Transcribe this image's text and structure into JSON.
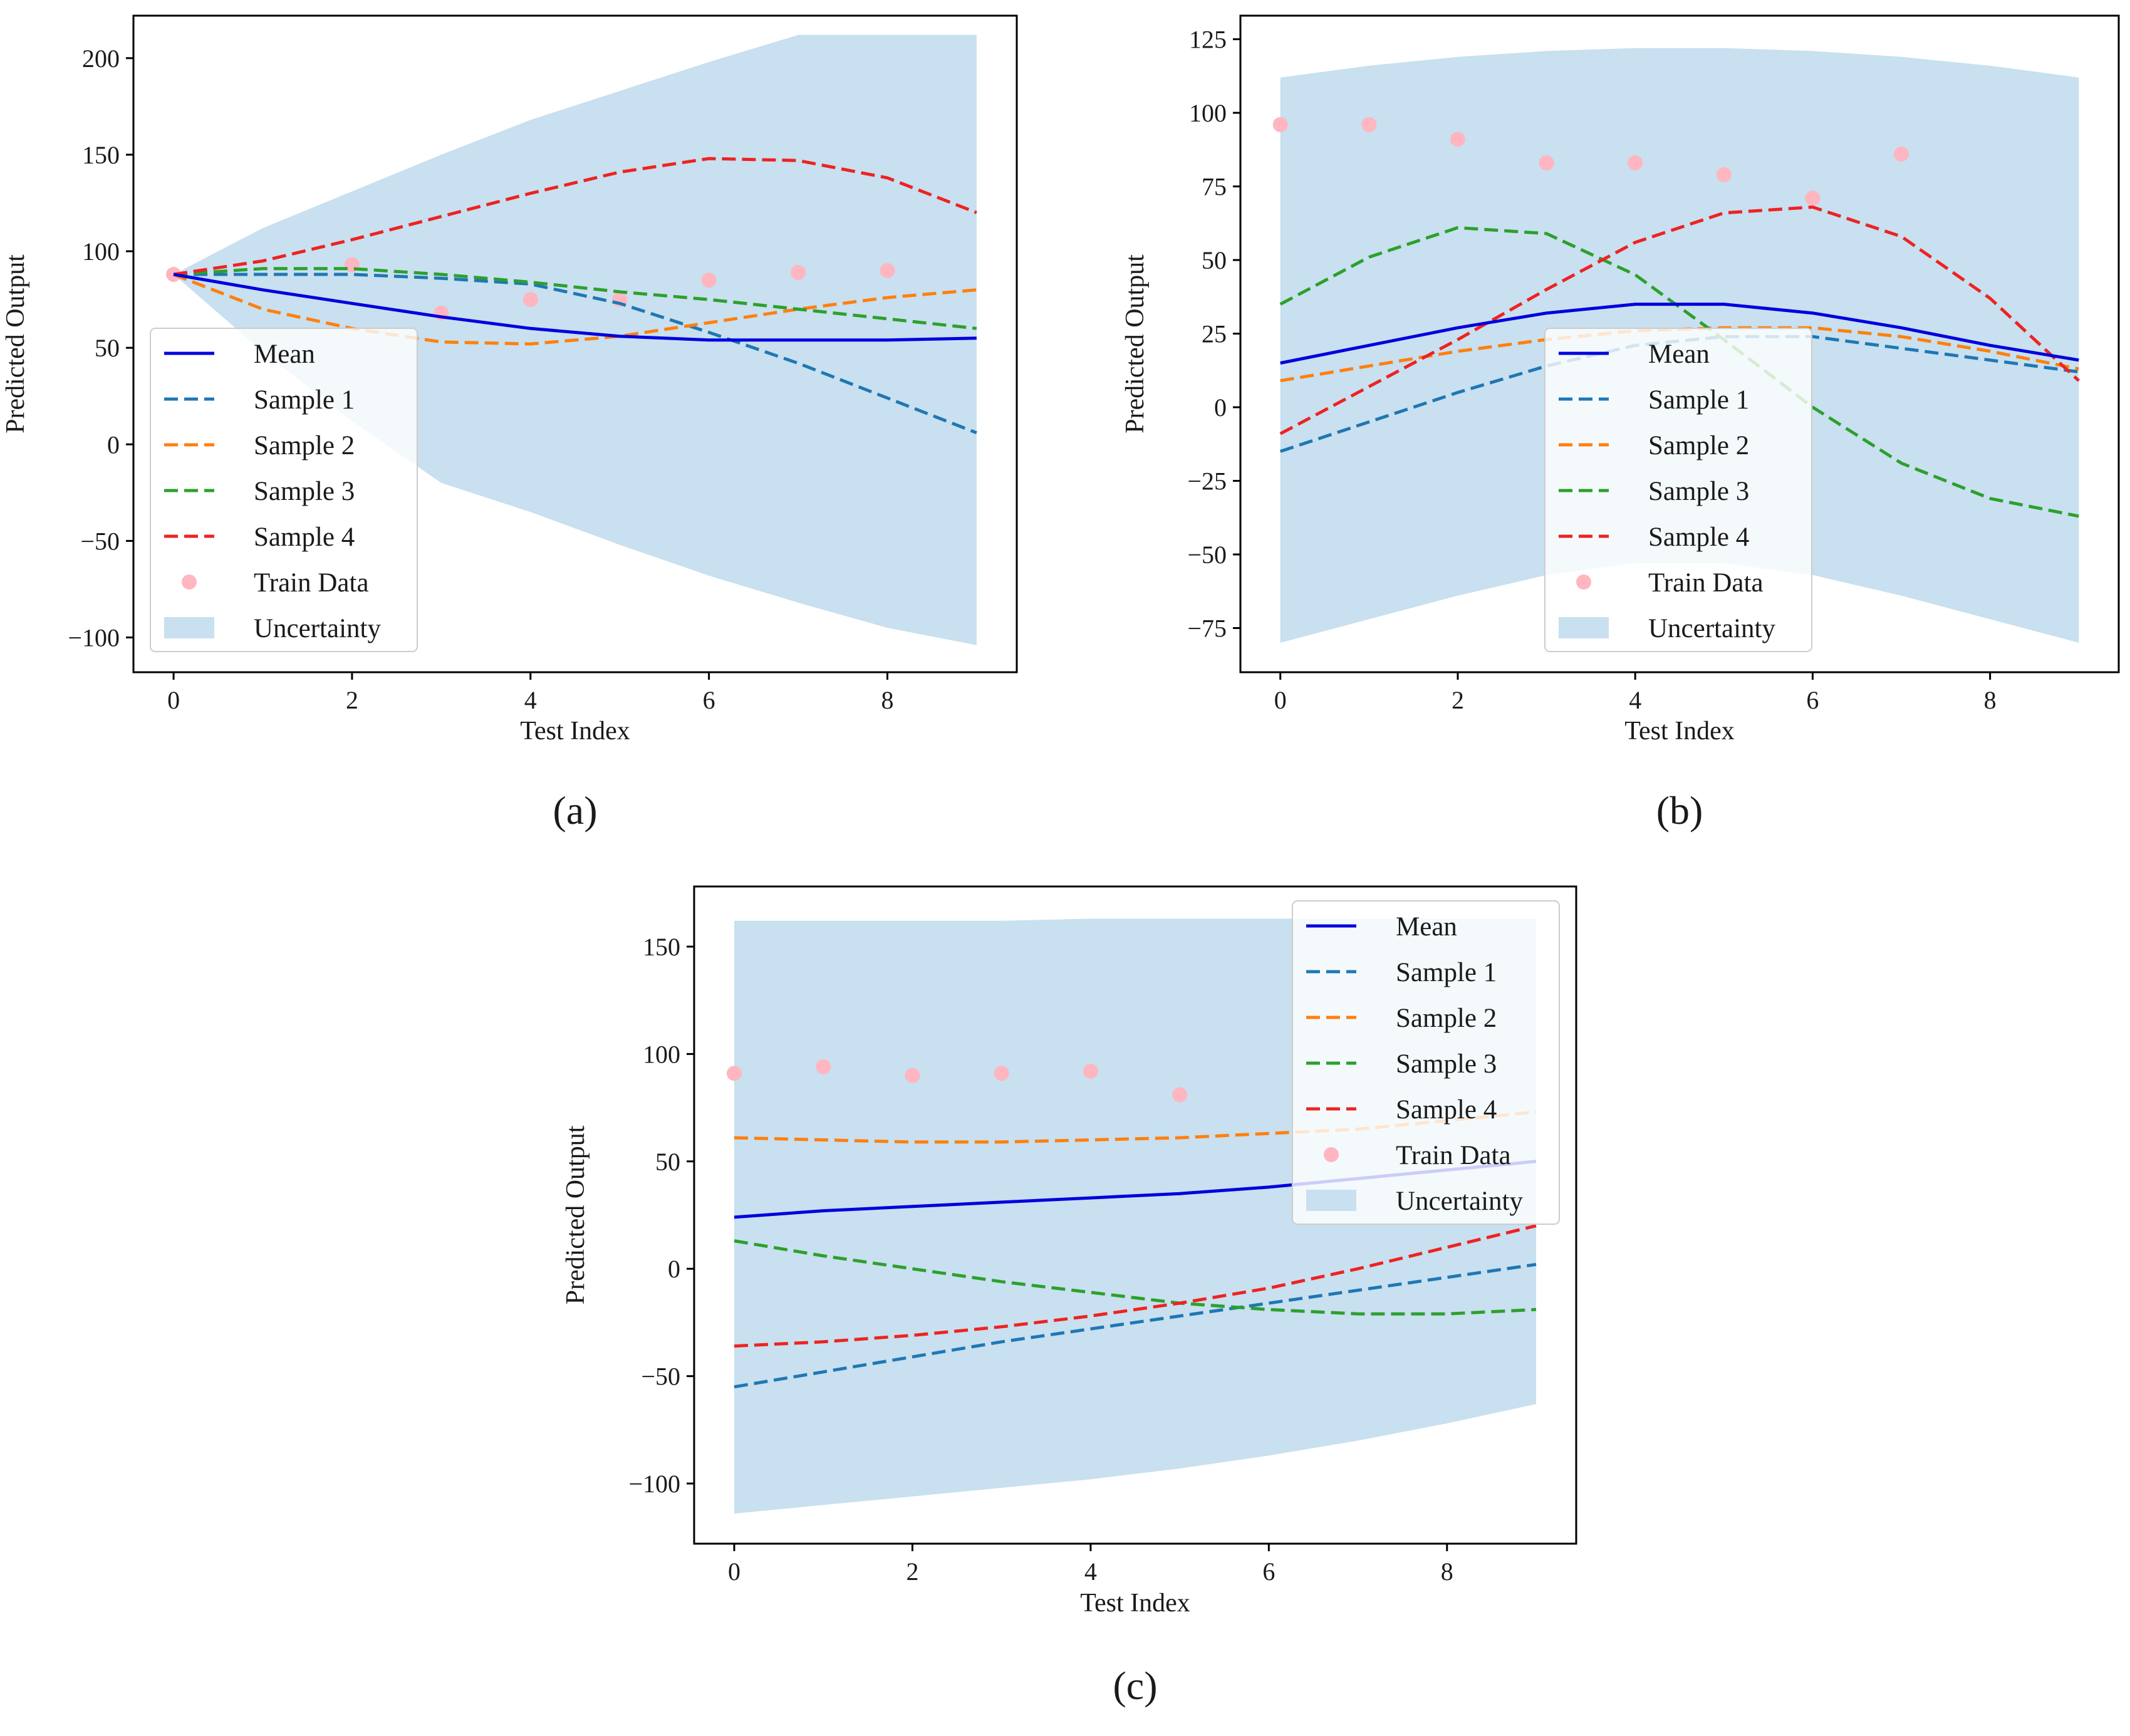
{
  "colors": {
    "mean": "#0000dd",
    "sample1": "#1f77b4",
    "sample2": "#ff7f0e",
    "sample3": "#2ca02c",
    "sample4": "#ee2222",
    "train": "#ffb6c1",
    "uncertainty": "#c8e0ef"
  },
  "chart_data": [
    {
      "type": "line",
      "panel_label": "(a)",
      "xlabel": "Test Index",
      "ylabel": "Predicted Output",
      "xlim": [
        -0.45,
        9.45
      ],
      "ylim": [
        -118,
        222
      ],
      "xticks": [
        0,
        2,
        4,
        6,
        8
      ],
      "xtick_labels": [
        "0",
        "2",
        "4",
        "6",
        "8"
      ],
      "yticks": [
        -100,
        -50,
        0,
        50,
        100,
        150,
        200
      ],
      "ytick_labels": [
        "−100",
        "−50",
        "0",
        "50",
        "100",
        "150",
        "200"
      ],
      "legend_position": "lower-left",
      "x": [
        0,
        1,
        2,
        3,
        4,
        5,
        6,
        7,
        8,
        9
      ],
      "mean": {
        "name": "Mean",
        "values": [
          88,
          80,
          73,
          66,
          60,
          56,
          54,
          54,
          54,
          55
        ]
      },
      "uncertainty": {
        "name": "Uncertainty",
        "upper": [
          88,
          112,
          131,
          150,
          168,
          183,
          198,
          212,
          212,
          212
        ],
        "lower": [
          88,
          48,
          12,
          -20,
          -35,
          -52,
          -68,
          -82,
          -95,
          -104
        ]
      },
      "series": [
        {
          "name": "Sample 1",
          "values": [
            88,
            88,
            88,
            86,
            83,
            73,
            58,
            42,
            24,
            6
          ]
        },
        {
          "name": "Sample 2",
          "values": [
            88,
            70,
            60,
            53,
            52,
            56,
            63,
            70,
            76,
            80
          ]
        },
        {
          "name": "Sample 3",
          "values": [
            88,
            91,
            91,
            88,
            84,
            79,
            75,
            70,
            65,
            60
          ]
        },
        {
          "name": "Sample 4",
          "values": [
            88,
            95,
            106,
            118,
            130,
            141,
            148,
            147,
            138,
            120
          ]
        }
      ],
      "train_data": {
        "name": "Train Data",
        "x": [
          0,
          2,
          3,
          4,
          5,
          6,
          7,
          8
        ],
        "y": [
          88,
          93,
          68,
          75,
          75,
          85,
          89,
          90
        ]
      }
    },
    {
      "type": "line",
      "panel_label": "(b)",
      "xlabel": "Test Index",
      "ylabel": "Predicted Output",
      "xlim": [
        -0.45,
        9.45
      ],
      "ylim": [
        -90,
        133
      ],
      "xticks": [
        0,
        2,
        4,
        6,
        8
      ],
      "xtick_labels": [
        "0",
        "2",
        "4",
        "6",
        "8"
      ],
      "yticks": [
        -75,
        -50,
        -25,
        0,
        25,
        50,
        75,
        100,
        125
      ],
      "ytick_labels": [
        "−75",
        "−50",
        "−25",
        "0",
        "25",
        "50",
        "75",
        "100",
        "125"
      ],
      "legend_position": "lower-center",
      "x": [
        0,
        1,
        2,
        3,
        4,
        5,
        6,
        7,
        8,
        9
      ],
      "mean": {
        "name": "Mean",
        "values": [
          15,
          21,
          27,
          32,
          35,
          35,
          32,
          27,
          21,
          16
        ]
      },
      "uncertainty": {
        "name": "Uncertainty",
        "upper": [
          112,
          116,
          119,
          121,
          122,
          122,
          121,
          119,
          116,
          112
        ],
        "lower": [
          -80,
          -72,
          -64,
          -57,
          -53,
          -53,
          -57,
          -64,
          -72,
          -80
        ]
      },
      "series": [
        {
          "name": "Sample 1",
          "values": [
            -15,
            -5,
            5,
            14,
            21,
            24,
            24,
            20,
            16,
            12
          ]
        },
        {
          "name": "Sample 2",
          "values": [
            9,
            14,
            19,
            23,
            26,
            27,
            27,
            24,
            19,
            13
          ]
        },
        {
          "name": "Sample 3",
          "values": [
            35,
            51,
            61,
            59,
            45,
            23,
            0,
            -19,
            -31,
            -37
          ]
        },
        {
          "name": "Sample 4",
          "values": [
            -9,
            7,
            23,
            40,
            56,
            66,
            68,
            58,
            37,
            9
          ]
        }
      ],
      "train_data": {
        "name": "Train Data",
        "x": [
          0,
          1,
          2,
          3,
          4,
          5,
          6,
          7
        ],
        "y": [
          96,
          96,
          91,
          83,
          83,
          79,
          71,
          86
        ]
      }
    },
    {
      "type": "line",
      "panel_label": "(c)",
      "xlabel": "Test Index",
      "ylabel": "Predicted Output",
      "xlim": [
        -0.45,
        9.45
      ],
      "ylim": [
        -128,
        178
      ],
      "xticks": [
        0,
        2,
        4,
        6,
        8
      ],
      "xtick_labels": [
        "0",
        "2",
        "4",
        "6",
        "8"
      ],
      "yticks": [
        -100,
        -50,
        0,
        50,
        100,
        150
      ],
      "ytick_labels": [
        "−100",
        "−50",
        "0",
        "50",
        "100",
        "150"
      ],
      "legend_position": "upper-right",
      "x": [
        0,
        1,
        2,
        3,
        4,
        5,
        6,
        7,
        8,
        9
      ],
      "mean": {
        "name": "Mean",
        "values": [
          24,
          27,
          29,
          31,
          33,
          35,
          38,
          42,
          46,
          50
        ]
      },
      "uncertainty": {
        "name": "Uncertainty",
        "upper": [
          162,
          162,
          162,
          162,
          163,
          163,
          163,
          163,
          163,
          163
        ],
        "lower": [
          -114,
          -110,
          -106,
          -102,
          -98,
          -93,
          -87,
          -80,
          -72,
          -63
        ]
      },
      "series": [
        {
          "name": "Sample 1",
          "values": [
            -55,
            -48,
            -41,
            -34,
            -28,
            -22,
            -16,
            -10,
            -4,
            2
          ]
        },
        {
          "name": "Sample 2",
          "values": [
            61,
            60,
            59,
            59,
            60,
            61,
            63,
            65,
            69,
            73
          ]
        },
        {
          "name": "Sample 3",
          "values": [
            13,
            6,
            0,
            -6,
            -11,
            -16,
            -19,
            -21,
            -21,
            -19
          ]
        },
        {
          "name": "Sample 4",
          "values": [
            -36,
            -34,
            -31,
            -27,
            -22,
            -16,
            -9,
            0,
            10,
            20
          ]
        }
      ],
      "train_data": {
        "name": "Train Data",
        "x": [
          0,
          1,
          2,
          3,
          4,
          5
        ],
        "y": [
          91,
          94,
          90,
          91,
          92,
          81
        ]
      }
    }
  ]
}
